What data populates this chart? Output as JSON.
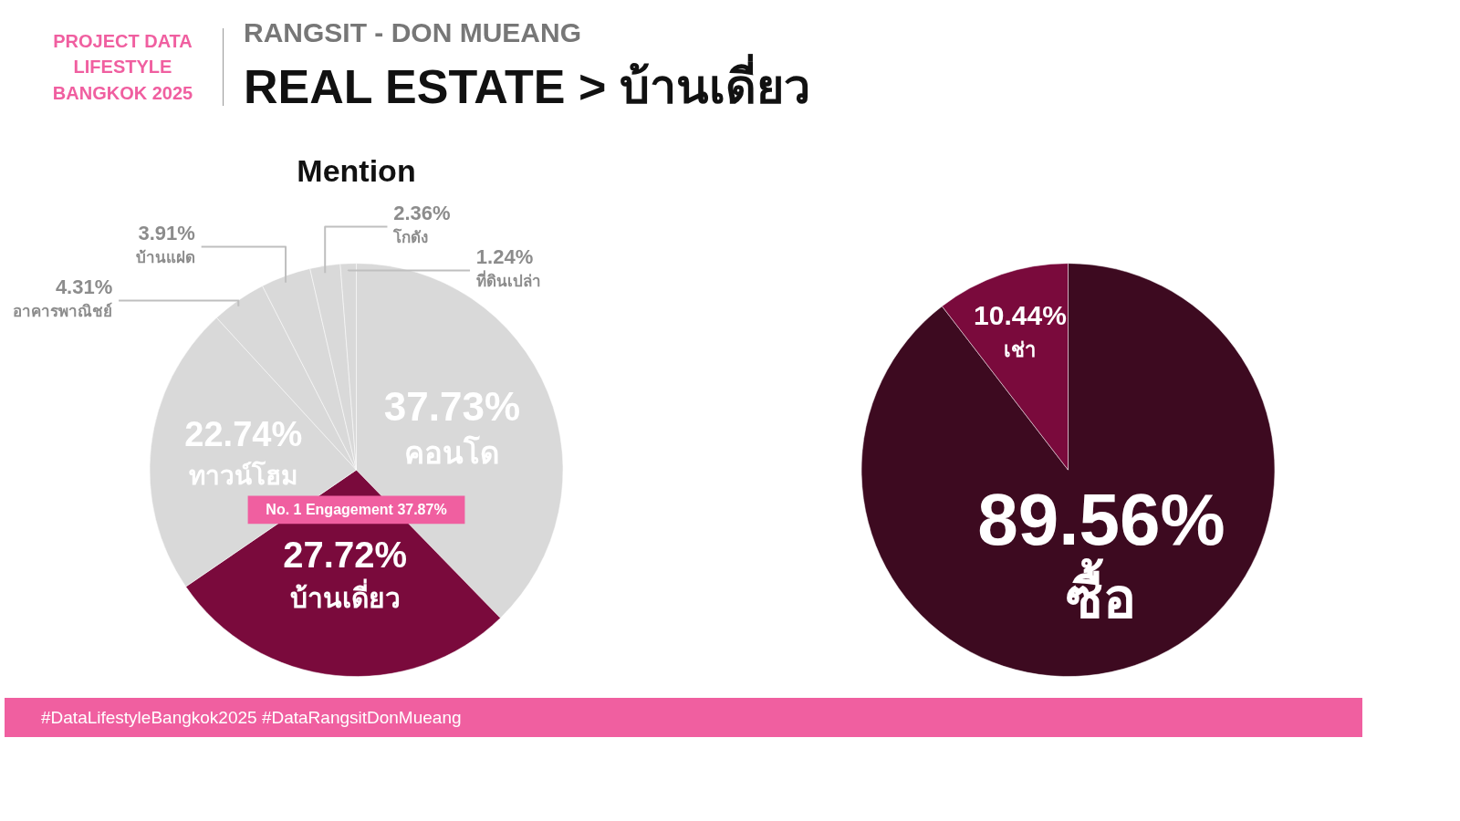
{
  "chart_data": [
    {
      "type": "pie",
      "title": "REAL ESTATE > บ้านเดี่ยว",
      "subtitle": "RANGSIT - DON MUEANG",
      "categories": [
        "คอนโด",
        "บ้านเดี่ยว",
        "ทาวน์โฮม",
        "อาคารพาณิชย์",
        "บ้านแฝด",
        "โกดัง",
        "ที่ดินเปล่า"
      ],
      "values": [
        37.73,
        27.72,
        22.74,
        4.31,
        3.91,
        2.36,
        1.24
      ],
      "value_labels": [
        "37.73%",
        "27.72%",
        "22.74%",
        "4.31%",
        "3.91%",
        "2.36%",
        "1.24%"
      ],
      "colors": [
        "#d9d9d9",
        "#7a0a3c",
        "#d9d9d9",
        "#d9d9d9",
        "#d9d9d9",
        "#d9d9d9",
        "#d9d9d9"
      ],
      "annotations": [
        "PROJECT DATA LIFESTYLE BANGKOK 2025",
        "Mention",
        "No. 1 Engagement 37.87%",
        "#DataLifestyleBangkok2025 #DataRangsitDonMueang"
      ]
    },
    {
      "type": "pie",
      "categories": [
        "ซื้อ",
        "เช่า"
      ],
      "values": [
        89.56,
        10.44
      ],
      "value_labels": [
        "89.56%",
        "10.44%"
      ],
      "colors": [
        "#3d0a20",
        "#7a0a3c"
      ]
    }
  ]
}
